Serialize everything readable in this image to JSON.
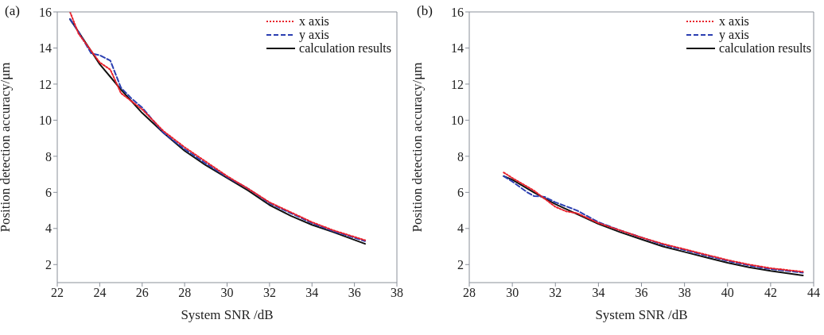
{
  "chart_data": [
    {
      "type": "line",
      "annotations": [
        "(a)"
      ],
      "xlabel": "System SNR /dB",
      "ylabel": "Position detection accuracy/μm",
      "xlim": [
        22,
        38
      ],
      "xticks": [
        22,
        24,
        26,
        28,
        30,
        32,
        34,
        36,
        38
      ],
      "ylim": [
        1,
        16
      ],
      "yticks": [
        2,
        4,
        6,
        8,
        10,
        12,
        14,
        16
      ],
      "legend": "top right",
      "grid": false,
      "series": [
        {
          "name": "x axis",
          "color": "#e8202a",
          "line_style": "dotted",
          "x": [
            22.6,
            23,
            24,
            24.5,
            25,
            26,
            27,
            28,
            29,
            30,
            31,
            32,
            33,
            34,
            35,
            36.5
          ],
          "values": [
            16.0,
            14.8,
            13.2,
            12.8,
            11.5,
            10.6,
            9.4,
            8.5,
            7.7,
            6.9,
            6.2,
            5.45,
            4.9,
            4.35,
            3.9,
            3.35
          ]
        },
        {
          "name": "y axis",
          "color": "#2a3eb1",
          "line_style": "dashed",
          "x": [
            22.6,
            23,
            23.6,
            24,
            24.5,
            25,
            25.5,
            26,
            26.5,
            27,
            28,
            29,
            30,
            31,
            32,
            33,
            34,
            35,
            36.5
          ],
          "values": [
            15.6,
            14.9,
            13.7,
            13.6,
            13.3,
            11.8,
            11.2,
            10.7,
            10.0,
            9.3,
            8.4,
            7.6,
            6.85,
            6.2,
            5.4,
            4.85,
            4.3,
            3.85,
            3.3
          ]
        },
        {
          "name": "calculation results",
          "color": "#111111",
          "line_style": "solid",
          "x": [
            22.6,
            23,
            24,
            25,
            26,
            27,
            28,
            29,
            30,
            31,
            32,
            33,
            34,
            35,
            36.5
          ],
          "values": [
            15.6,
            14.9,
            13.1,
            11.7,
            10.4,
            9.3,
            8.3,
            7.5,
            6.8,
            6.1,
            5.3,
            4.7,
            4.2,
            3.8,
            3.15
          ]
        }
      ]
    },
    {
      "type": "line",
      "annotations": [
        "(b)"
      ],
      "xlabel": "System SNR /dB",
      "ylabel": "Position detection accuracy/μm",
      "xlim": [
        28,
        44
      ],
      "xticks": [
        28,
        30,
        32,
        34,
        36,
        38,
        40,
        42,
        44
      ],
      "ylim": [
        1,
        16
      ],
      "yticks": [
        2,
        4,
        6,
        8,
        10,
        12,
        14,
        16
      ],
      "legend": "top right",
      "grid": false,
      "series": [
        {
          "name": "x axis",
          "color": "#e8202a",
          "line_style": "dotted",
          "x": [
            29.6,
            30,
            31,
            32,
            32.5,
            33,
            34,
            35,
            36,
            37,
            38,
            39,
            40,
            41,
            42,
            43.5
          ],
          "values": [
            7.1,
            6.8,
            6.1,
            5.2,
            4.95,
            4.85,
            4.3,
            3.9,
            3.5,
            3.15,
            2.85,
            2.55,
            2.25,
            2.0,
            1.8,
            1.6
          ]
        },
        {
          "name": "y axis",
          "color": "#2a3eb1",
          "line_style": "dashed",
          "x": [
            29.6,
            30,
            30.7,
            31,
            31.5,
            32,
            33,
            34,
            35,
            36,
            37,
            38,
            39,
            40,
            41,
            42,
            43.5
          ],
          "values": [
            6.9,
            6.6,
            6.0,
            5.8,
            5.75,
            5.45,
            5.0,
            4.35,
            3.9,
            3.5,
            3.1,
            2.8,
            2.5,
            2.2,
            1.95,
            1.75,
            1.55
          ]
        },
        {
          "name": "calculation results",
          "color": "#111111",
          "line_style": "solid",
          "x": [
            29.6,
            30,
            31,
            32,
            33,
            34,
            35,
            36,
            37,
            38,
            39,
            40,
            41,
            42,
            43.5
          ],
          "values": [
            6.9,
            6.7,
            6.0,
            5.35,
            4.8,
            4.25,
            3.8,
            3.4,
            3.0,
            2.7,
            2.4,
            2.1,
            1.85,
            1.65,
            1.4
          ]
        }
      ]
    }
  ]
}
